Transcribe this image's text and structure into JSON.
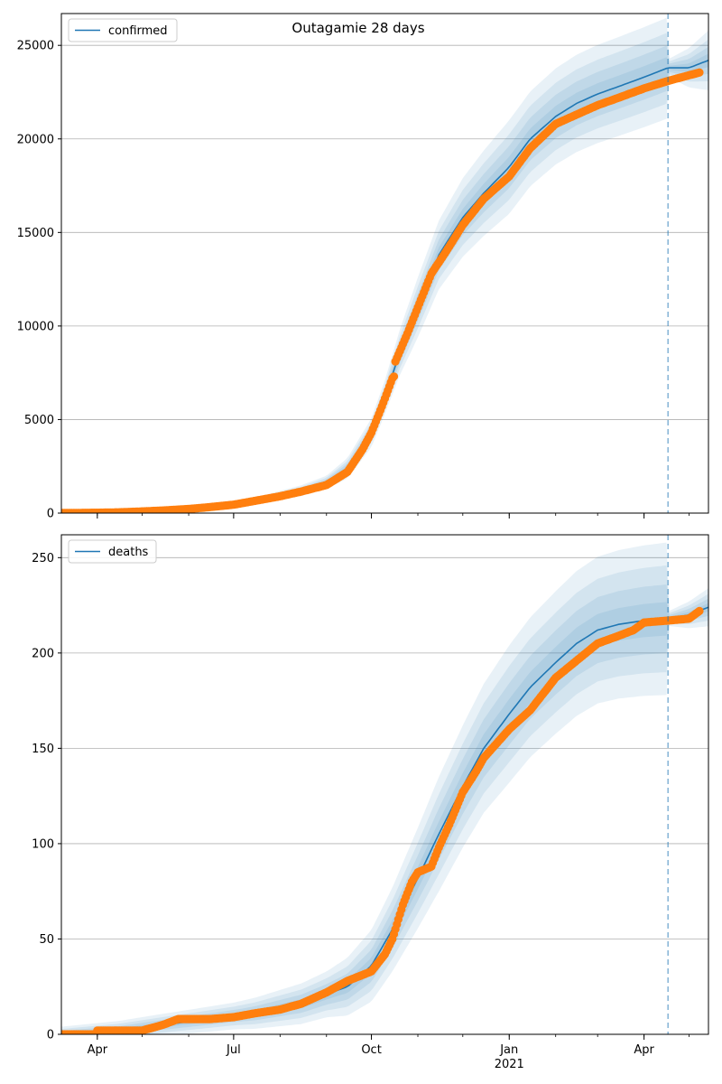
{
  "figure_title": "Outagamie 28 days",
  "colors": {
    "model_line": "#1f77b4",
    "band": "#1f77b4",
    "observed": "#ff7f0e",
    "grid": "#b0b0b0",
    "vline": "#1f77b4"
  },
  "chart_data": [
    {
      "type": "line",
      "name": "confirmed-panel",
      "legend": [
        "confirmed"
      ],
      "legend_position": "upper left",
      "grid": "horizontal",
      "ylim": [
        0,
        26700
      ],
      "yticks": [
        0,
        5000,
        10000,
        15000,
        20000,
        25000
      ],
      "xlim": [
        "2020-03-08",
        "2021-05-14"
      ],
      "xticks": [
        {
          "date": "2020-04-01",
          "label": "Apr"
        },
        {
          "date": "2020-07-01",
          "label": "Jul"
        },
        {
          "date": "2020-10-01",
          "label": "Oct"
        },
        {
          "date": "2021-01-01",
          "label": "Jan",
          "sublabel": "2021"
        },
        {
          "date": "2021-04-01",
          "label": "Apr"
        }
      ],
      "forecast_start": "2021-04-17",
      "model": [
        [
          "2020-03-08",
          0
        ],
        [
          "2020-04-15",
          50
        ],
        [
          "2020-05-15",
          150
        ],
        [
          "2020-06-15",
          320
        ],
        [
          "2020-07-15",
          650
        ],
        [
          "2020-08-15",
          1200
        ],
        [
          "2020-09-01",
          1650
        ],
        [
          "2020-09-15",
          2400
        ],
        [
          "2020-10-01",
          4300
        ],
        [
          "2020-10-10",
          6200
        ],
        [
          "2020-10-20",
          8600
        ],
        [
          "2020-11-01",
          11000
        ],
        [
          "2020-11-15",
          13800
        ],
        [
          "2020-12-01",
          15800
        ],
        [
          "2020-12-15",
          17100
        ],
        [
          "2021-01-01",
          18500
        ],
        [
          "2021-01-15",
          20000
        ],
        [
          "2021-02-01",
          21200
        ],
        [
          "2021-02-15",
          21900
        ],
        [
          "2021-03-01",
          22400
        ],
        [
          "2021-03-15",
          22800
        ],
        [
          "2021-04-01",
          23300
        ],
        [
          "2021-04-17",
          23800
        ],
        [
          "2021-05-01",
          23800
        ],
        [
          "2021-05-14",
          24200
        ]
      ],
      "band_widths": [
        [
          "2020-03-08",
          0
        ],
        [
          "2020-07-01",
          120
        ],
        [
          "2020-09-01",
          350
        ],
        [
          "2020-10-10",
          900
        ],
        [
          "2020-11-01",
          1600
        ],
        [
          "2020-12-01",
          2100
        ],
        [
          "2021-01-01",
          2500
        ],
        [
          "2021-02-15",
          2600
        ],
        [
          "2021-04-17",
          2700
        ],
        [
          "2021-04-18",
          500
        ],
        [
          "2021-05-14",
          1600
        ]
      ],
      "observed": [
        [
          "2020-03-08",
          2
        ],
        [
          "2020-04-01",
          20
        ],
        [
          "2020-04-15",
          40
        ],
        [
          "2020-05-01",
          90
        ],
        [
          "2020-05-15",
          140
        ],
        [
          "2020-06-01",
          220
        ],
        [
          "2020-06-15",
          320
        ],
        [
          "2020-07-01",
          450
        ],
        [
          "2020-07-15",
          650
        ],
        [
          "2020-08-01",
          900
        ],
        [
          "2020-08-15",
          1150
        ],
        [
          "2020-09-01",
          1500
        ],
        [
          "2020-09-15",
          2200
        ],
        [
          "2020-09-25",
          3400
        ],
        [
          "2020-10-01",
          4300
        ],
        [
          "2020-10-08",
          5700
        ],
        [
          "2020-10-15",
          7200
        ],
        [
          "2020-10-16",
          7300
        ],
        [
          "2020-10-17",
          8100
        ],
        [
          "2020-10-25",
          9600
        ],
        [
          "2020-11-01",
          11000
        ],
        [
          "2020-11-10",
          12800
        ],
        [
          "2020-11-20",
          14000
        ],
        [
          "2020-12-01",
          15400
        ],
        [
          "2020-12-15",
          16800
        ],
        [
          "2021-01-01",
          18000
        ],
        [
          "2021-01-15",
          19500
        ],
        [
          "2021-02-01",
          20800
        ],
        [
          "2021-02-15",
          21300
        ],
        [
          "2021-03-01",
          21800
        ],
        [
          "2021-03-15",
          22200
        ],
        [
          "2021-04-01",
          22700
        ],
        [
          "2021-04-17",
          23100
        ],
        [
          "2021-05-01",
          23400
        ],
        [
          "2021-05-08",
          23550
        ]
      ]
    },
    {
      "type": "line",
      "name": "deaths-panel",
      "legend": [
        "deaths"
      ],
      "legend_position": "upper left",
      "grid": "horizontal",
      "ylim": [
        0,
        262
      ],
      "yticks": [
        0,
        50,
        100,
        150,
        200,
        250
      ],
      "xlim": [
        "2020-03-08",
        "2021-05-14"
      ],
      "xticks": [
        {
          "date": "2020-04-01",
          "label": "Apr"
        },
        {
          "date": "2020-07-01",
          "label": "Jul"
        },
        {
          "date": "2020-10-01",
          "label": "Oct"
        },
        {
          "date": "2021-01-01",
          "label": "Jan",
          "sublabel": "2021"
        },
        {
          "date": "2021-04-01",
          "label": "Apr"
        }
      ],
      "forecast_start": "2021-04-17",
      "model": [
        [
          "2020-03-08",
          0
        ],
        [
          "2020-04-15",
          2
        ],
        [
          "2020-05-15",
          5
        ],
        [
          "2020-06-15",
          8
        ],
        [
          "2020-07-15",
          11
        ],
        [
          "2020-08-15",
          16
        ],
        [
          "2020-09-15",
          25
        ],
        [
          "2020-10-01",
          36
        ],
        [
          "2020-10-15",
          55
        ],
        [
          "2020-11-01",
          82
        ],
        [
          "2020-11-15",
          105
        ],
        [
          "2020-12-01",
          130
        ],
        [
          "2020-12-15",
          150
        ],
        [
          "2021-01-01",
          168
        ],
        [
          "2021-01-15",
          182
        ],
        [
          "2021-02-01",
          195
        ],
        [
          "2021-02-15",
          205
        ],
        [
          "2021-03-01",
          212
        ],
        [
          "2021-03-15",
          215
        ],
        [
          "2021-04-01",
          217
        ],
        [
          "2021-04-17",
          218
        ],
        [
          "2021-05-01",
          220
        ],
        [
          "2021-05-14",
          224
        ]
      ],
      "band_widths": [
        [
          "2020-03-08",
          4
        ],
        [
          "2020-07-01",
          7
        ],
        [
          "2020-09-01",
          12
        ],
        [
          "2020-10-15",
          22
        ],
        [
          "2020-11-15",
          30
        ],
        [
          "2021-01-01",
          36
        ],
        [
          "2021-02-15",
          38
        ],
        [
          "2021-04-17",
          40
        ],
        [
          "2021-04-18",
          4
        ],
        [
          "2021-05-14",
          10
        ]
      ],
      "observed": [
        [
          "2020-03-08",
          0
        ],
        [
          "2020-03-31",
          0
        ],
        [
          "2020-04-01",
          2
        ],
        [
          "2020-04-15",
          2
        ],
        [
          "2020-05-01",
          2
        ],
        [
          "2020-05-15",
          5
        ],
        [
          "2020-05-25",
          8
        ],
        [
          "2020-06-15",
          8
        ],
        [
          "2020-07-01",
          9
        ],
        [
          "2020-07-15",
          11
        ],
        [
          "2020-08-01",
          13
        ],
        [
          "2020-08-15",
          16
        ],
        [
          "2020-09-01",
          22
        ],
        [
          "2020-09-15",
          28
        ],
        [
          "2020-10-01",
          33
        ],
        [
          "2020-10-10",
          42
        ],
        [
          "2020-10-15",
          50
        ],
        [
          "2020-10-22",
          68
        ],
        [
          "2020-10-28",
          80
        ],
        [
          "2020-11-01",
          85
        ],
        [
          "2020-11-10",
          88
        ],
        [
          "2020-11-15",
          98
        ],
        [
          "2020-11-22",
          110
        ],
        [
          "2020-12-01",
          127
        ],
        [
          "2020-12-10",
          138
        ],
        [
          "2020-12-15",
          145
        ],
        [
          "2021-01-01",
          160
        ],
        [
          "2021-01-15",
          170
        ],
        [
          "2021-01-25",
          180
        ],
        [
          "2021-02-01",
          187
        ],
        [
          "2021-02-15",
          196
        ],
        [
          "2021-03-01",
          205
        ],
        [
          "2021-03-15",
          209
        ],
        [
          "2021-03-25",
          212
        ],
        [
          "2021-04-01",
          216
        ],
        [
          "2021-04-17",
          217
        ],
        [
          "2021-05-01",
          218
        ],
        [
          "2021-05-08",
          222
        ]
      ]
    }
  ]
}
